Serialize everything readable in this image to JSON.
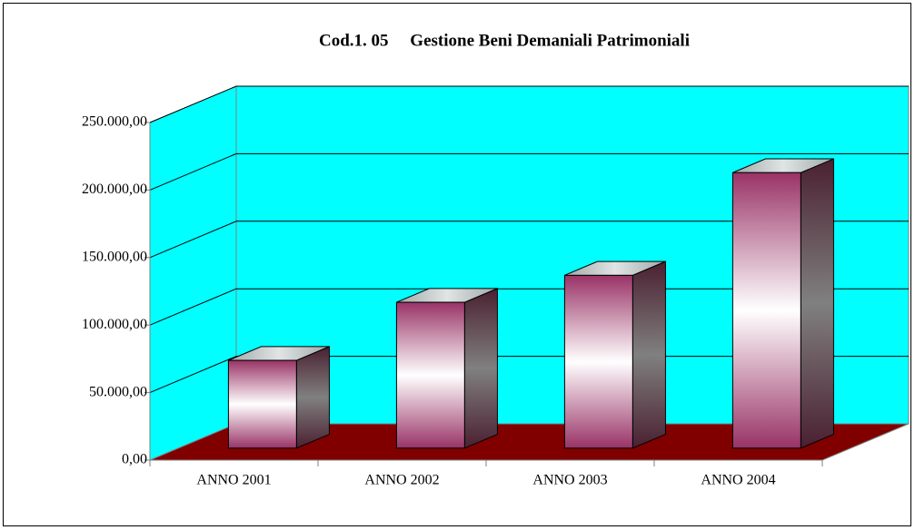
{
  "chart_data": {
    "type": "bar3d",
    "title": "Cod.1. 05     Gestione Beni Demaniali Patrimoniali",
    "categories": [
      "ANNO 2001",
      "ANNO 2002",
      "ANNO 2003",
      "ANNO 2004"
    ],
    "values": [
      65000,
      108000,
      128000,
      204000
    ],
    "color": "#993366",
    "wall_color": "#00ffff",
    "floor_color": "#800000",
    "ylim": [
      0,
      250000
    ],
    "yticks": [
      {
        "value": 0,
        "label": "0,00"
      },
      {
        "value": 50000,
        "label": "50.000,00"
      },
      {
        "value": 100000,
        "label": "100.000,00"
      },
      {
        "value": 150000,
        "label": "150.000,00"
      },
      {
        "value": 200000,
        "label": "200.000,00"
      },
      {
        "value": 250000,
        "label": "250.000,00"
      }
    ],
    "grid": true
  }
}
